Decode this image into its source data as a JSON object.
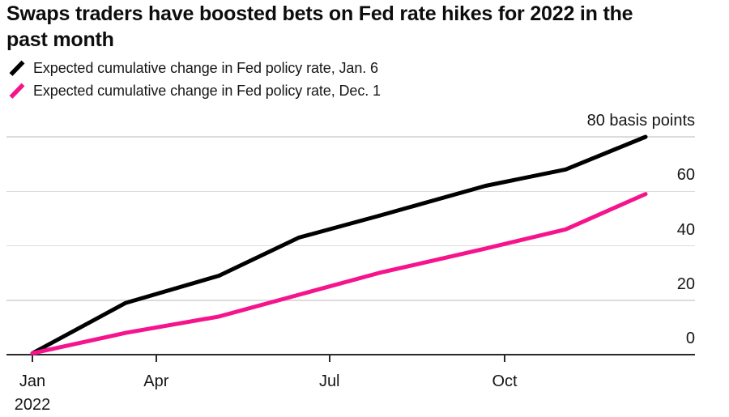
{
  "header": {
    "title_line1": "Swaps traders have boosted bets on Fed rate hikes for 2022 in the",
    "title_line2": "past month"
  },
  "legend": {
    "items": [
      {
        "icon": "line-slash-icon",
        "label": "Expected cumulative change in Fed policy rate, Jan. 6",
        "color": "#000000"
      },
      {
        "icon": "line-slash-icon",
        "label": "Expected cumulative change in Fed policy rate, Dec. 1",
        "color": "#f5148c"
      }
    ]
  },
  "chart_data": {
    "type": "line",
    "title": "Swaps traders have boosted bets on Fed rate hikes for 2022 in the past month",
    "xlabel": "",
    "ylabel": "basis points",
    "ylim": [
      0,
      80
    ],
    "grid": "horizontal",
    "legend_position": "top-left",
    "x_unit": "day-of-year 2022",
    "y_ticks": [
      {
        "value": 80,
        "label": "80 basis points"
      },
      {
        "value": 60,
        "label": "60"
      },
      {
        "value": 40,
        "label": "40"
      },
      {
        "value": 20,
        "label": "20"
      },
      {
        "value": 0,
        "label": "0"
      }
    ],
    "x_ticks": [
      {
        "day": 26,
        "label": "Jan",
        "sublabel": "2022"
      },
      {
        "day": 91,
        "label": "Apr",
        "sublabel": ""
      },
      {
        "day": 182,
        "label": "Jul",
        "sublabel": ""
      },
      {
        "day": 274,
        "label": "Oct",
        "sublabel": ""
      }
    ],
    "series": [
      {
        "name": "Expected cumulative change in Fed policy rate, Jan. 6",
        "color": "#000000",
        "points": [
          {
            "date": "Jan 26",
            "day": 26,
            "value": 0.5
          },
          {
            "date": "Mar 16",
            "day": 75,
            "value": 19
          },
          {
            "date": "May 4",
            "day": 124,
            "value": 29
          },
          {
            "date": "Jun 15",
            "day": 166,
            "value": 43
          },
          {
            "date": "Jul 27",
            "day": 208,
            "value": 51
          },
          {
            "date": "Sep 21",
            "day": 264,
            "value": 62
          },
          {
            "date": "Nov 2",
            "day": 306,
            "value": 68
          },
          {
            "date": "Dec 14",
            "day": 348,
            "value": 80
          }
        ]
      },
      {
        "name": "Expected cumulative change in Fed policy rate, Dec. 1",
        "color": "#f5148c",
        "points": [
          {
            "date": "Jan 26",
            "day": 26,
            "value": 0.5
          },
          {
            "date": "Mar 16",
            "day": 75,
            "value": 8
          },
          {
            "date": "May 4",
            "day": 124,
            "value": 14
          },
          {
            "date": "Jun 15",
            "day": 166,
            "value": 22
          },
          {
            "date": "Jul 27",
            "day": 208,
            "value": 30
          },
          {
            "date": "Sep 21",
            "day": 264,
            "value": 39
          },
          {
            "date": "Nov 2",
            "day": 306,
            "value": 46
          },
          {
            "date": "Dec 14",
            "day": 348,
            "value": 59
          }
        ]
      }
    ]
  },
  "colors": {
    "background": "#ffffff",
    "gridline": "#dcdcdc",
    "axis": "#2a2a2a",
    "text": "#161616",
    "accent_pink": "#f5148c",
    "accent_black": "#000000"
  }
}
